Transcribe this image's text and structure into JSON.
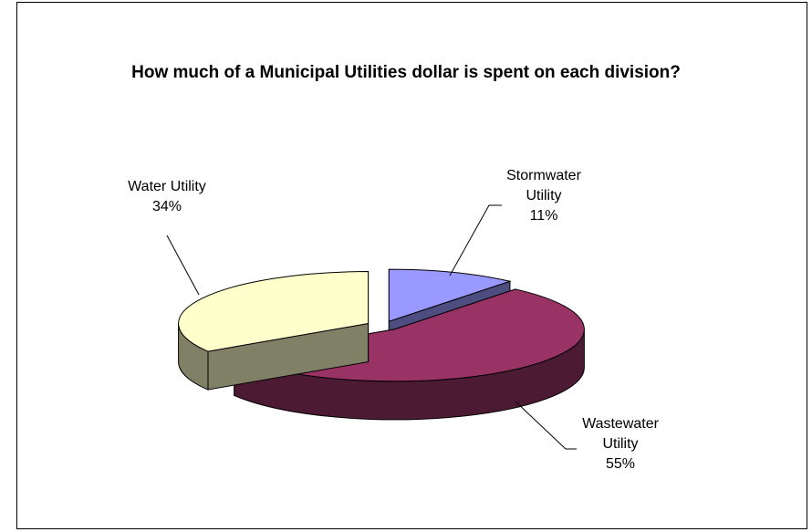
{
  "chart_data": {
    "type": "pie3d",
    "title": "How much of a Municipal Utilities dollar is spent on each division?",
    "categories": [
      "Stormwater Utility",
      "Wastewater Utility",
      "Water Utility"
    ],
    "values": [
      11,
      55,
      34
    ],
    "value_labels": [
      "11%",
      "55%",
      "34%"
    ],
    "colors": [
      "#9999ff",
      "#993366",
      "#ffffcc"
    ],
    "side_colors": [
      "#4d4d80",
      "#4d1a33",
      "#808066"
    ]
  }
}
